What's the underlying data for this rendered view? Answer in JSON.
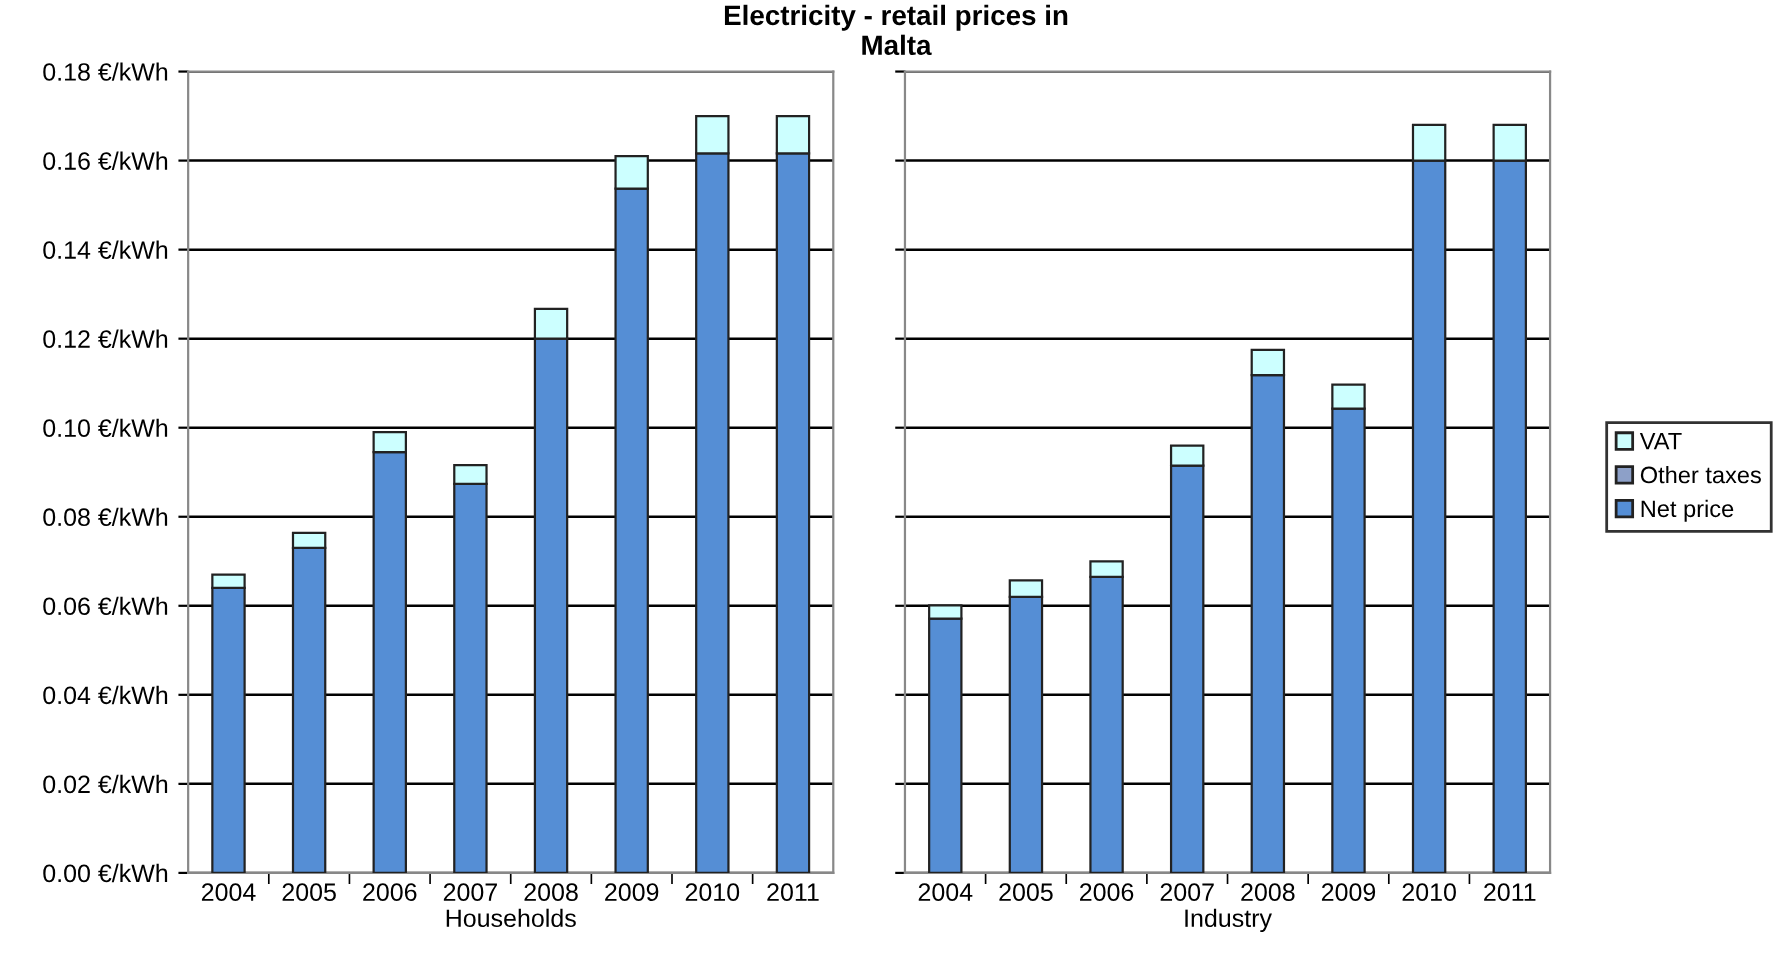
{
  "chart_data": [
    {
      "type": "bar",
      "title": "Electricity - retail prices in\nMalta",
      "xlabel": "Households",
      "categories": [
        "2004",
        "2005",
        "2006",
        "2007",
        "2008",
        "2009",
        "2010",
        "2011"
      ],
      "stacked": true,
      "grid": "y",
      "legend": "right",
      "ylim": [
        0,
        0.18
      ],
      "yticks": [
        {
          "value": 0,
          "label": "0.00 €/kWh"
        },
        {
          "value": 0.02,
          "label": "0.02 €/kWh"
        },
        {
          "value": 0.04,
          "label": "0.04 €/kWh"
        },
        {
          "value": 0.06,
          "label": "0.06 €/kWh"
        },
        {
          "value": 0.08,
          "label": "0.08 €/kWh"
        },
        {
          "value": 0.1,
          "label": "0.10 €/kWh"
        },
        {
          "value": 0.12,
          "label": "0.12 €/kWh"
        },
        {
          "value": 0.14,
          "label": "0.14 €/kWh"
        },
        {
          "value": 0.16,
          "label": "0.16 €/kWh"
        },
        {
          "value": 0.18,
          "label": "0.18 €/kWh"
        }
      ],
      "series": [
        {
          "name": "Net price",
          "color": "#558ed5",
          "values": [
            0.064,
            0.073,
            0.0945,
            0.0874,
            0.12,
            0.1537,
            0.1616,
            0.1616
          ]
        },
        {
          "name": "Other taxes",
          "color": "#8da0c8",
          "values": [
            null,
            null,
            null,
            null,
            null,
            null,
            null,
            null
          ]
        },
        {
          "name": "VAT",
          "color": "#ccffff",
          "values": [
            0.003,
            0.0034,
            0.0045,
            0.0042,
            0.0067,
            0.0073,
            0.0084,
            0.0084
          ]
        }
      ]
    },
    {
      "type": "bar",
      "xlabel": "Industry",
      "categories": [
        "2004",
        "2005",
        "2006",
        "2007",
        "2008",
        "2009",
        "2010",
        "2011"
      ],
      "stacked": true,
      "grid": "y",
      "tick_labels": "x",
      "ylim": [
        0,
        0.18
      ],
      "yticks": [
        0,
        0.02,
        0.04,
        0.06,
        0.08,
        0.1,
        0.12,
        0.14,
        0.16,
        0.18
      ],
      "series": [
        {
          "color": "#558ed5",
          "values": [
            0.0571,
            0.062,
            0.0665,
            0.0915,
            0.1118,
            0.1043,
            0.16,
            0.16
          ]
        },
        {
          "color": "#ccffff",
          "values": [
            0.003,
            0.0037,
            0.0035,
            0.0045,
            0.0057,
            0.0054,
            0.008,
            0.008
          ]
        }
      ]
    }
  ]
}
